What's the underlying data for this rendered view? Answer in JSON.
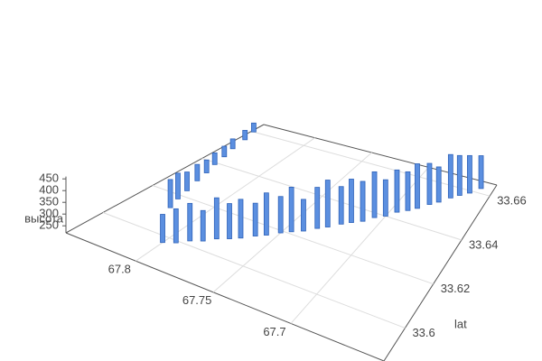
{
  "chart_data": {
    "type": "bar3d",
    "x_title": null,
    "y_title": "lat",
    "z_title": "высота",
    "xlim": [
      67.845,
      67.64
    ],
    "xticks": [
      67.8,
      67.75,
      67.7
    ],
    "ylim": [
      33.585,
      33.665
    ],
    "yticks": [
      33.6,
      33.62,
      33.64,
      33.66
    ],
    "zlim": [
      220,
      460
    ],
    "zticks": [
      250,
      300,
      350,
      400,
      450
    ],
    "color": "#5b8fe0",
    "grid": true,
    "x": [
      67.8,
      67.794,
      67.789,
      67.783,
      67.778,
      67.772,
      67.767,
      67.761,
      67.756,
      67.75,
      67.745,
      67.739,
      67.733,
      67.728,
      67.722,
      67.717,
      67.711,
      67.706,
      67.7,
      67.695,
      67.689,
      67.684,
      67.678,
      67.673,
      67.667,
      67.662,
      67.656,
      67.65,
      67.82,
      67.823,
      67.825,
      67.828,
      67.83,
      67.833,
      67.835,
      67.838,
      67.84,
      67.843
    ],
    "y": [
      33.597,
      33.599,
      33.602,
      33.604,
      33.607,
      33.609,
      33.611,
      33.614,
      33.616,
      33.619,
      33.621,
      33.623,
      33.626,
      33.628,
      33.631,
      33.633,
      33.635,
      33.638,
      33.64,
      33.643,
      33.645,
      33.647,
      33.65,
      33.652,
      33.655,
      33.657,
      33.659,
      33.662,
      33.613,
      33.618,
      33.623,
      33.629,
      33.634,
      33.639,
      33.644,
      33.649,
      33.655,
      33.66
    ],
    "z": [
      340,
      365,
      380,
      350,
      395,
      370,
      385,
      360,
      400,
      375,
      410,
      355,
      395,
      420,
      380,
      405,
      390,
      415,
      375,
      400,
      385,
      410,
      395,
      370,
      405,
      390,
      380,
      360,
      340,
      330,
      300,
      290,
      275,
      270,
      265,
      262,
      260,
      258
    ]
  }
}
